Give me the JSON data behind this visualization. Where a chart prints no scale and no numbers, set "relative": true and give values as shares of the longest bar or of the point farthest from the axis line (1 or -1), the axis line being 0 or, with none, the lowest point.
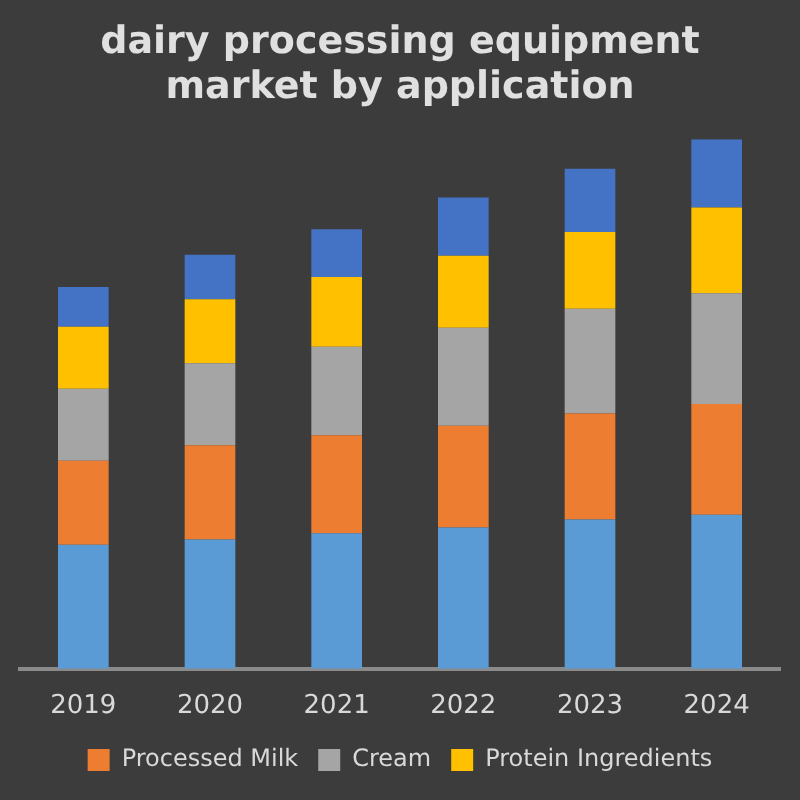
{
  "chart_data": {
    "type": "bar",
    "title": "dairy processing equipment market by application",
    "categories": [
      "2019",
      "2020",
      "2021",
      "2022",
      "2023",
      "2024"
    ],
    "stacked": true,
    "relative": true,
    "grid": false,
    "legend": "bottom",
    "series": [
      {
        "color": "#5b9bd5",
        "values": [
          0.234,
          0.244,
          0.256,
          0.267,
          0.282,
          0.291
        ]
      },
      {
        "name": "Processed Milk",
        "color": "#ed7d31",
        "values": [
          0.159,
          0.178,
          0.185,
          0.192,
          0.2,
          0.209
        ]
      },
      {
        "name": "Cream",
        "color": "#a5a5a5",
        "values": [
          0.136,
          0.155,
          0.167,
          0.185,
          0.198,
          0.209
        ]
      },
      {
        "name": "Protein Ingredients",
        "color": "#ffc000",
        "values": [
          0.117,
          0.121,
          0.132,
          0.136,
          0.145,
          0.162
        ]
      },
      {
        "color": "#4472c4",
        "values": [
          0.075,
          0.084,
          0.09,
          0.11,
          0.119,
          0.129
        ]
      }
    ]
  }
}
